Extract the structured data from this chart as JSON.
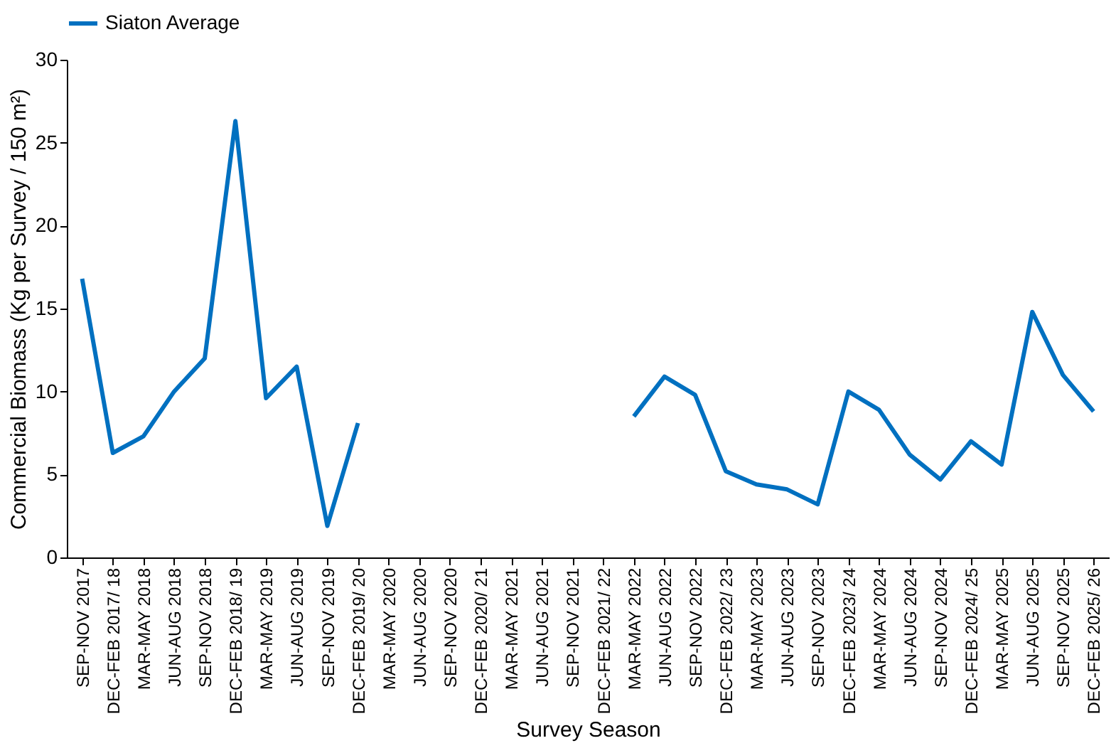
{
  "chart_data": {
    "type": "line",
    "xlabel": "Survey Season",
    "ylabel": "Commercial Biomass (Kg per Survey / 150 m²)",
    "categories": [
      "SEP-NOV 2017",
      "DEC-FEB 2017/ 18",
      "MAR-MAY 2018",
      "JUN-AUG 2018",
      "SEP-NOV 2018",
      "DEC-FEB 2018/ 19",
      "MAR-MAY 2019",
      "JUN-AUG 2019",
      "SEP-NOV 2019",
      "DEC-FEB 2019/ 20",
      "MAR-MAY 2020",
      "JUN-AUG 2020",
      "SEP-NOV 2020",
      "DEC-FEB 2020/ 21",
      "MAR-MAY 2021",
      "JUN-AUG 2021",
      "SEP-NOV 2021",
      "DEC-FEB 2021/ 22",
      "MAR-MAY 2022",
      "JUN-AUG 2022",
      "SEP-NOV 2022",
      "DEC-FEB 2022/ 23",
      "MAR-MAY 2023",
      "JUN-AUG 2023",
      "SEP-NOV 2023",
      "DEC-FEB 2023/ 24",
      "MAR-MAY 2024",
      "JUN-AUG 2024",
      "SEP-NOV 2024",
      "DEC-FEB 2024/ 25",
      "MAR-MAY 2025",
      "JUN-AUG 2025",
      "SEP-NOV 2025",
      "DEC-FEB 2025/ 26"
    ],
    "series": [
      {
        "name": "Siaton Average",
        "color": "#0070c0",
        "values": [
          16.8,
          6.3,
          7.3,
          10,
          12,
          26.3,
          9.6,
          11.5,
          1.9,
          8.1,
          null,
          null,
          null,
          null,
          null,
          null,
          null,
          null,
          8.5,
          10.9,
          9.8,
          5.2,
          4.4,
          4.1,
          3.2,
          10,
          8.9,
          6.2,
          4.7,
          7.0,
          5.6,
          14.8,
          11.0,
          8.8
        ]
      }
    ],
    "ylim": [
      0,
      30
    ],
    "yticks": [
      0,
      5,
      10,
      15,
      20,
      25,
      30
    ],
    "grid": false,
    "legend": "top",
    "marker": "none",
    "line_style": "solid"
  }
}
